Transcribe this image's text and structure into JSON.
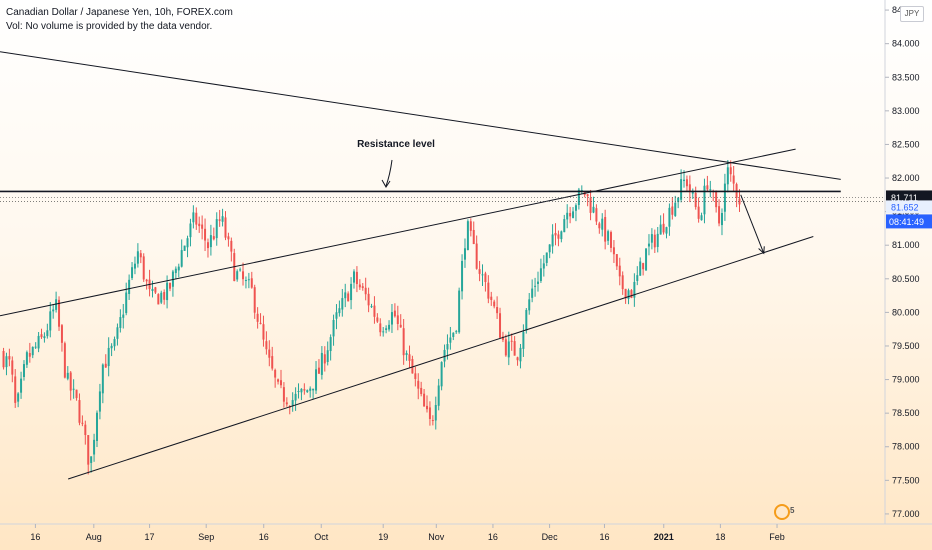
{
  "header": {
    "title": "Canadian Dollar / Japanese Yen, 10h, FOREX.com",
    "volume_note": "Vol: No volume is provided by the data vendor."
  },
  "currency_badge": "JPY",
  "logo_icon": "broker-logo-icon",
  "logo_label": "5",
  "colors": {
    "up": "#26a69a",
    "down": "#ef5350",
    "line": "#131722",
    "price_tag": "#131722",
    "last_tag": "#2962ff"
  },
  "chart_data": {
    "type": "candlestick",
    "symbol": "CADJPY",
    "timeframe": "10h",
    "y_axis": {
      "ylim": [
        76.85,
        84.65
      ],
      "ticks": [
        "77.000",
        "77.500",
        "78.000",
        "78.500",
        "79.000",
        "79.500",
        "80.000",
        "80.500",
        "81.000",
        "81.500",
        "82.000",
        "82.500",
        "83.000",
        "83.500",
        "84.000",
        "84.500"
      ]
    },
    "x_axis": {
      "ticks": [
        {
          "label": "16",
          "pos": 0.04
        },
        {
          "label": "Aug",
          "pos": 0.106
        },
        {
          "label": "17",
          "pos": 0.169
        },
        {
          "label": "Sep",
          "pos": 0.233
        },
        {
          "label": "16",
          "pos": 0.298
        },
        {
          "label": "Oct",
          "pos": 0.363
        },
        {
          "label": "19",
          "pos": 0.433
        },
        {
          "label": "Nov",
          "pos": 0.493
        },
        {
          "label": "16",
          "pos": 0.557
        },
        {
          "label": "Dec",
          "pos": 0.621
        },
        {
          "label": "16",
          "pos": 0.683
        },
        {
          "label": "2021",
          "pos": 0.75,
          "bold": true
        },
        {
          "label": "18",
          "pos": 0.814
        },
        {
          "label": "Feb",
          "pos": 0.878
        }
      ]
    },
    "price_levels": [
      {
        "label": "81.711",
        "value": 81.711,
        "style": "dark"
      },
      {
        "label": "81.652",
        "value": 81.652,
        "style": "light"
      }
    ],
    "countdown": "08:41:49",
    "annotation": {
      "text": "Resistance level"
    },
    "trend_lines": [
      {
        "name": "descending-resistance",
        "from": [
          0.0,
          83.88
        ],
        "to": [
          0.95,
          81.98
        ]
      },
      {
        "name": "upper-channel",
        "from": [
          0.0,
          79.95
        ],
        "to": [
          0.899,
          82.43
        ]
      },
      {
        "name": "lower-channel",
        "from": [
          0.077,
          77.52
        ],
        "to": [
          0.919,
          81.13
        ]
      },
      {
        "name": "horizontal-resistance",
        "from": [
          0.0,
          81.8
        ],
        "to": [
          0.95,
          81.8
        ]
      }
    ],
    "projection_arrow": {
      "from": [
        0.837,
        81.75
      ],
      "to": [
        0.863,
        80.88
      ]
    },
    "anchors": [
      [
        0.0,
        79.4
      ],
      [
        0.012,
        79.2
      ],
      [
        0.018,
        78.5
      ],
      [
        0.03,
        79.3
      ],
      [
        0.048,
        79.6
      ],
      [
        0.063,
        80.1
      ],
      [
        0.075,
        79.0
      ],
      [
        0.088,
        78.6
      ],
      [
        0.102,
        77.7
      ],
      [
        0.115,
        79.2
      ],
      [
        0.13,
        79.5
      ],
      [
        0.145,
        80.4
      ],
      [
        0.156,
        80.9
      ],
      [
        0.17,
        80.2
      ],
      [
        0.19,
        80.3
      ],
      [
        0.205,
        80.9
      ],
      [
        0.22,
        81.4
      ],
      [
        0.235,
        81.0
      ],
      [
        0.25,
        81.4
      ],
      [
        0.265,
        80.6
      ],
      [
        0.285,
        80.3
      ],
      [
        0.3,
        79.4
      ],
      [
        0.315,
        78.8
      ],
      [
        0.33,
        78.7
      ],
      [
        0.345,
        78.8
      ],
      [
        0.36,
        79.1
      ],
      [
        0.38,
        79.9
      ],
      [
        0.4,
        80.5
      ],
      [
        0.415,
        80.2
      ],
      [
        0.43,
        79.8
      ],
      [
        0.445,
        80.0
      ],
      [
        0.46,
        79.3
      ],
      [
        0.478,
        78.6
      ],
      [
        0.487,
        78.3
      ],
      [
        0.5,
        79.4
      ],
      [
        0.515,
        79.8
      ],
      [
        0.527,
        81.3
      ],
      [
        0.54,
        80.7
      ],
      [
        0.555,
        80.2
      ],
      [
        0.57,
        79.5
      ],
      [
        0.585,
        79.4
      ],
      [
        0.6,
        80.3
      ],
      [
        0.62,
        80.9
      ],
      [
        0.64,
        81.5
      ],
      [
        0.66,
        81.8
      ],
      [
        0.675,
        81.4
      ],
      [
        0.69,
        81.0
      ],
      [
        0.7,
        80.4
      ],
      [
        0.715,
        80.3
      ],
      [
        0.73,
        80.9
      ],
      [
        0.745,
        81.2
      ],
      [
        0.76,
        81.6
      ],
      [
        0.775,
        82.0
      ],
      [
        0.79,
        81.4
      ],
      [
        0.8,
        82.0
      ],
      [
        0.812,
        81.3
      ],
      [
        0.822,
        82.1
      ],
      [
        0.837,
        81.65
      ]
    ]
  }
}
